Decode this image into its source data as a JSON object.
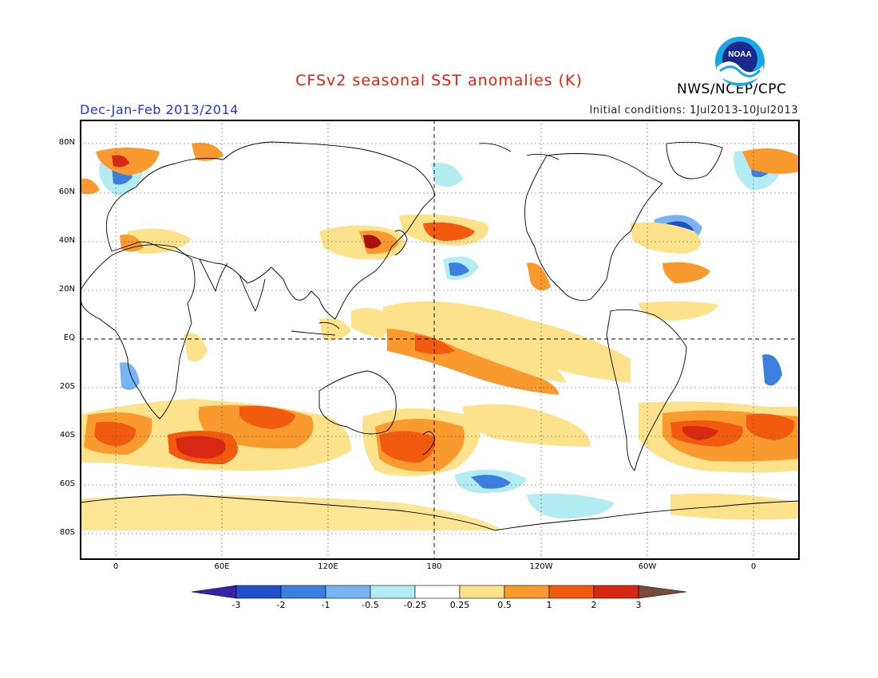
{
  "title": "CFSv2 seasonal SST anomalies (K)",
  "season": "Dec-Jan-Feb 2013/2014",
  "initial_conditions": "Initial conditions: 1Jul2013-10Jul2013",
  "agency": "NWS/NCEP/CPC",
  "logo_text": "NOAA",
  "colors": {
    "title": "#e3200f",
    "season": "#2233dd",
    "neg3": "#3b1fa8",
    "neg2": "#2050c8",
    "neg1": "#3b7fe0",
    "neg05": "#78b4f0",
    "neg025": "#b4ecf4",
    "zero": "#ffffff",
    "pos025": "#fce28a",
    "pos05": "#f99a2e",
    "pos1": "#f25a0e",
    "pos2": "#d82814",
    "pos3": "#a8120c",
    "pos3plus": "#7a4a3a"
  },
  "lat_labels": [
    "80N",
    "60N",
    "40N",
    "20N",
    "EQ",
    "20S",
    "40S",
    "60S",
    "80S"
  ],
  "lon_labels": [
    "0",
    "60E",
    "120E",
    "180",
    "120W",
    "60W",
    "0"
  ],
  "colorbar_labels": [
    "-3",
    "-2",
    "-1",
    "-0.5",
    "-0.25",
    "0.25",
    "0.5",
    "1",
    "2",
    "3"
  ]
}
